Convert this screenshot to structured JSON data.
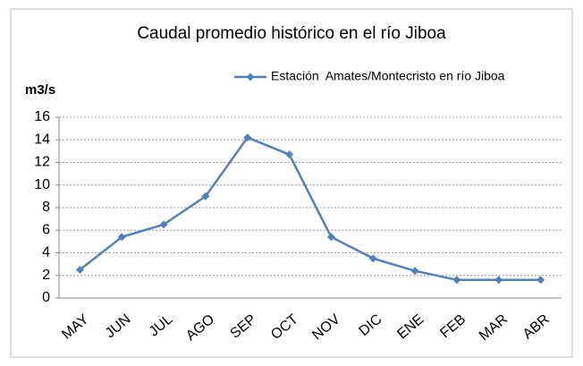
{
  "chart_data": {
    "type": "line",
    "title": "Caudal promedio histórico en el río Jiboa",
    "y_label": "m3/s",
    "categories": [
      "MAY",
      "JUN",
      "JUL",
      "AGO",
      "SEP",
      "OCT",
      "NOV",
      "DIC",
      "ENE",
      "FEB",
      "MAR",
      "ABR"
    ],
    "series": [
      {
        "name": "Estación  Amates/Montecristo en río Jiboa",
        "color": "#4f81bd",
        "values": [
          2.5,
          5.4,
          6.5,
          9.0,
          14.2,
          12.7,
          5.4,
          3.5,
          2.4,
          1.6,
          1.6,
          1.6
        ]
      }
    ],
    "ylim": [
      0,
      16
    ],
    "yticks": [
      0,
      2,
      4,
      6,
      8,
      10,
      12,
      14,
      16
    ],
    "grid": true,
    "legend": "top-right"
  }
}
